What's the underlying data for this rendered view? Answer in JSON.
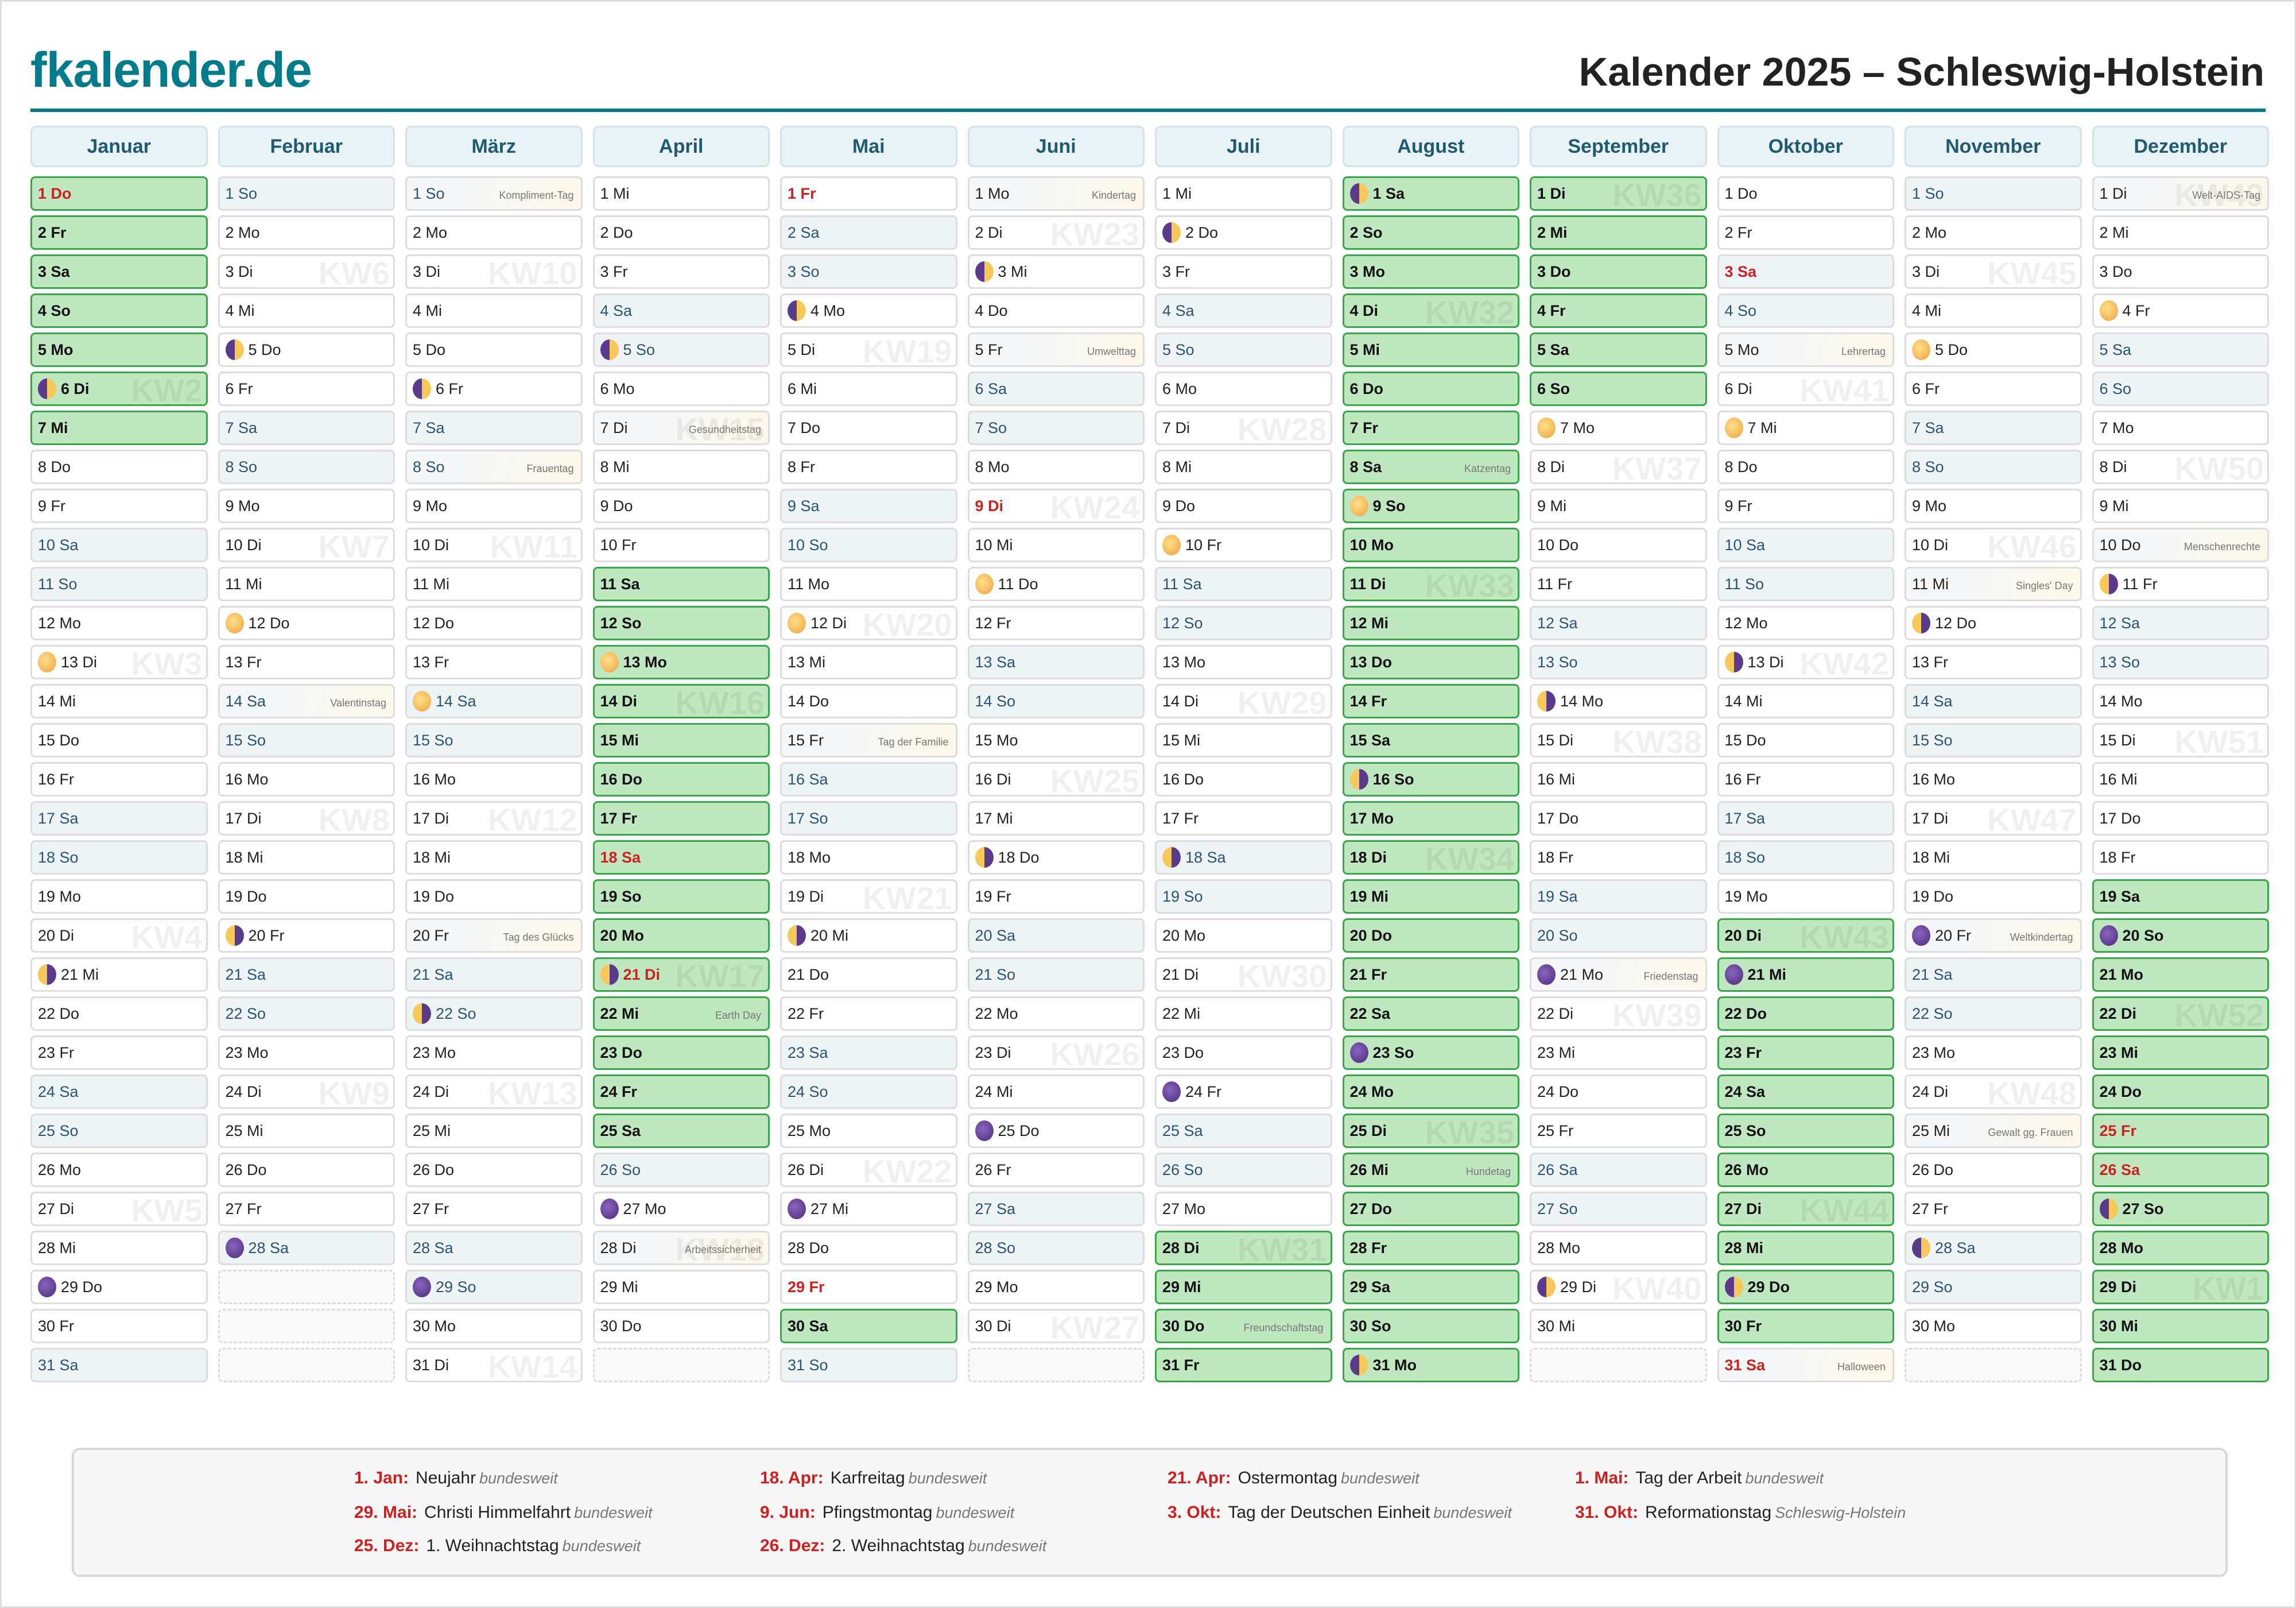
{
  "header": {
    "logo": "fkalender.de",
    "title": "Kalender 2025 – Schleswig-Holstein"
  },
  "months": [
    {
      "name": "Januar",
      "first": 3,
      "len": 31,
      "vacation": [
        [
          1,
          7
        ]
      ],
      "holidays": [
        1
      ],
      "moons": {
        "6": "first",
        "13": "full",
        "21": "last",
        "29": "new"
      },
      "kw": {
        "6": "KW2",
        "13": "KW3",
        "20": "KW4",
        "27": "KW5"
      },
      "events": {}
    },
    {
      "name": "Februar",
      "first": 6,
      "len": 28,
      "vacation": [],
      "holidays": [],
      "moons": {
        "5": "first",
        "12": "full",
        "20": "last",
        "28": "new"
      },
      "kw": {
        "3": "KW6",
        "10": "KW7",
        "17": "KW8",
        "24": "KW9"
      },
      "events": {
        "14": "Valentinstag"
      }
    },
    {
      "name": "März",
      "first": 6,
      "len": 31,
      "vacation": [],
      "holidays": [],
      "moons": {
        "6": "first",
        "14": "full",
        "22": "last",
        "29": "new"
      },
      "kw": {
        "3": "KW10",
        "10": "KW11",
        "17": "KW12",
        "24": "KW13",
        "31": "KW14"
      },
      "events": {
        "1": "Kompliment-Tag",
        "8": "Frauentag",
        "20": "Tag des Glücks"
      }
    },
    {
      "name": "April",
      "first": 2,
      "len": 30,
      "vacation": [
        [
          11,
          25
        ]
      ],
      "holidays": [
        18,
        21
      ],
      "moons": {
        "5": "first",
        "13": "full",
        "21": "last",
        "27": "new"
      },
      "kw": {
        "7": "KW15",
        "14": "KW16",
        "21": "KW17",
        "28": "KW18"
      },
      "events": {
        "7": "Gesundheitstag",
        "22": "Earth Day",
        "28": "Arbeitssicherheit"
      }
    },
    {
      "name": "Mai",
      "first": 4,
      "len": 31,
      "vacation": [
        [
          30,
          30
        ]
      ],
      "holidays": [
        1,
        29
      ],
      "moons": {
        "4": "first",
        "12": "full",
        "20": "last",
        "27": "new"
      },
      "kw": {
        "5": "KW19",
        "12": "KW20",
        "19": "KW21",
        "26": "KW22"
      },
      "events": {
        "15": "Tag der Familie"
      }
    },
    {
      "name": "Juni",
      "first": 0,
      "len": 30,
      "vacation": [],
      "holidays": [
        9
      ],
      "moons": {
        "3": "first",
        "11": "full",
        "18": "last",
        "25": "new"
      },
      "kw": {
        "2": "KW23",
        "9": "KW24",
        "16": "KW25",
        "23": "KW26",
        "30": "KW27"
      },
      "events": {
        "1": "Kindertag",
        "5": "Umwelttag"
      }
    },
    {
      "name": "Juli",
      "first": 2,
      "len": 31,
      "vacation": [
        [
          28,
          31
        ]
      ],
      "holidays": [],
      "moons": {
        "2": "first",
        "10": "full",
        "18": "last",
        "24": "new"
      },
      "kw": {
        "7": "KW28",
        "14": "KW29",
        "21": "KW30",
        "28": "KW31"
      },
      "events": {
        "30": "Freundschaftstag"
      }
    },
    {
      "name": "August",
      "first": 5,
      "len": 31,
      "vacation": [
        [
          1,
          31
        ]
      ],
      "holidays": [],
      "moons": {
        "1": "first",
        "9": "full",
        "16": "last",
        "23": "new",
        "31": "first"
      },
      "kw": {
        "4": "KW32",
        "11": "KW33",
        "18": "KW34",
        "25": "KW35"
      },
      "events": {
        "8": "Katzentag",
        "26": "Hundetag"
      }
    },
    {
      "name": "September",
      "first": 1,
      "len": 30,
      "vacation": [
        [
          1,
          6
        ]
      ],
      "holidays": [],
      "moons": {
        "7": "full",
        "14": "last",
        "21": "new",
        "29": "first"
      },
      "kw": {
        "1": "KW36",
        "8": "KW37",
        "15": "KW38",
        "22": "KW39",
        "29": "KW40"
      },
      "events": {
        "21": "Friedenstag"
      }
    },
    {
      "name": "Oktober",
      "first": 3,
      "len": 31,
      "vacation": [
        [
          20,
          30
        ]
      ],
      "holidays": [
        3,
        31
      ],
      "moons": {
        "7": "full",
        "13": "last",
        "21": "new",
        "29": "first"
      },
      "kw": {
        "6": "KW41",
        "13": "KW42",
        "20": "KW43",
        "27": "KW44"
      },
      "events": {
        "5": "Lehrertag",
        "31": "Halloween"
      }
    },
    {
      "name": "November",
      "first": 6,
      "len": 30,
      "vacation": [],
      "holidays": [],
      "moons": {
        "5": "full",
        "12": "last",
        "20": "new",
        "28": "first"
      },
      "kw": {
        "3": "KW45",
        "10": "KW46",
        "17": "KW47",
        "24": "KW48"
      },
      "events": {
        "11": "Singles' Day",
        "20": "Weltkindertag",
        "25": "Gewalt gg. Frauen"
      }
    },
    {
      "name": "Dezember",
      "first": 1,
      "len": 31,
      "vacation": [
        [
          19,
          31
        ]
      ],
      "holidays": [
        25,
        26
      ],
      "moons": {
        "4": "full",
        "11": "last",
        "20": "new",
        "27": "first"
      },
      "kw": {
        "1": "KW49",
        "8": "KW50",
        "15": "KW51",
        "22": "KW52",
        "29": "KW1"
      },
      "events": {
        "1": "Welt-AIDS-Tag",
        "10": "Menschenrechte"
      }
    }
  ],
  "weekdays": [
    "Mo",
    "Di",
    "Mi",
    "Do",
    "Fr",
    "Sa",
    "So"
  ],
  "legend": [
    {
      "date": "1. Jan:",
      "name": "Neujahr",
      "scope": "bundesweit"
    },
    {
      "date": "18. Apr:",
      "name": "Karfreitag",
      "scope": "bundesweit"
    },
    {
      "date": "21. Apr:",
      "name": "Ostermontag",
      "scope": "bundesweit"
    },
    {
      "date": "1. Mai:",
      "name": "Tag der Arbeit",
      "scope": "bundesweit"
    },
    {
      "date": "29. Mai:",
      "name": "Christi Himmelfahrt",
      "scope": "bundesweit"
    },
    {
      "date": "9. Jun:",
      "name": "Pfingstmontag",
      "scope": "bundesweit"
    },
    {
      "date": "3. Okt:",
      "name": "Tag der Deutschen Einheit",
      "scope": "bundesweit"
    },
    {
      "date": "31. Okt:",
      "name": "Reformationstag",
      "scope": "Schleswig-Holstein"
    },
    {
      "date": "25. Dez:",
      "name": "1. Weihnachtstag",
      "scope": "bundesweit"
    },
    {
      "date": "26. Dez:",
      "name": "2. Weihnachtstag",
      "scope": "bundesweit"
    }
  ],
  "colors": {
    "brand": "#007b8a",
    "vacation": "#c0e8c0",
    "holiday": "#d01f1f",
    "weekend": "#eef3f6"
  }
}
